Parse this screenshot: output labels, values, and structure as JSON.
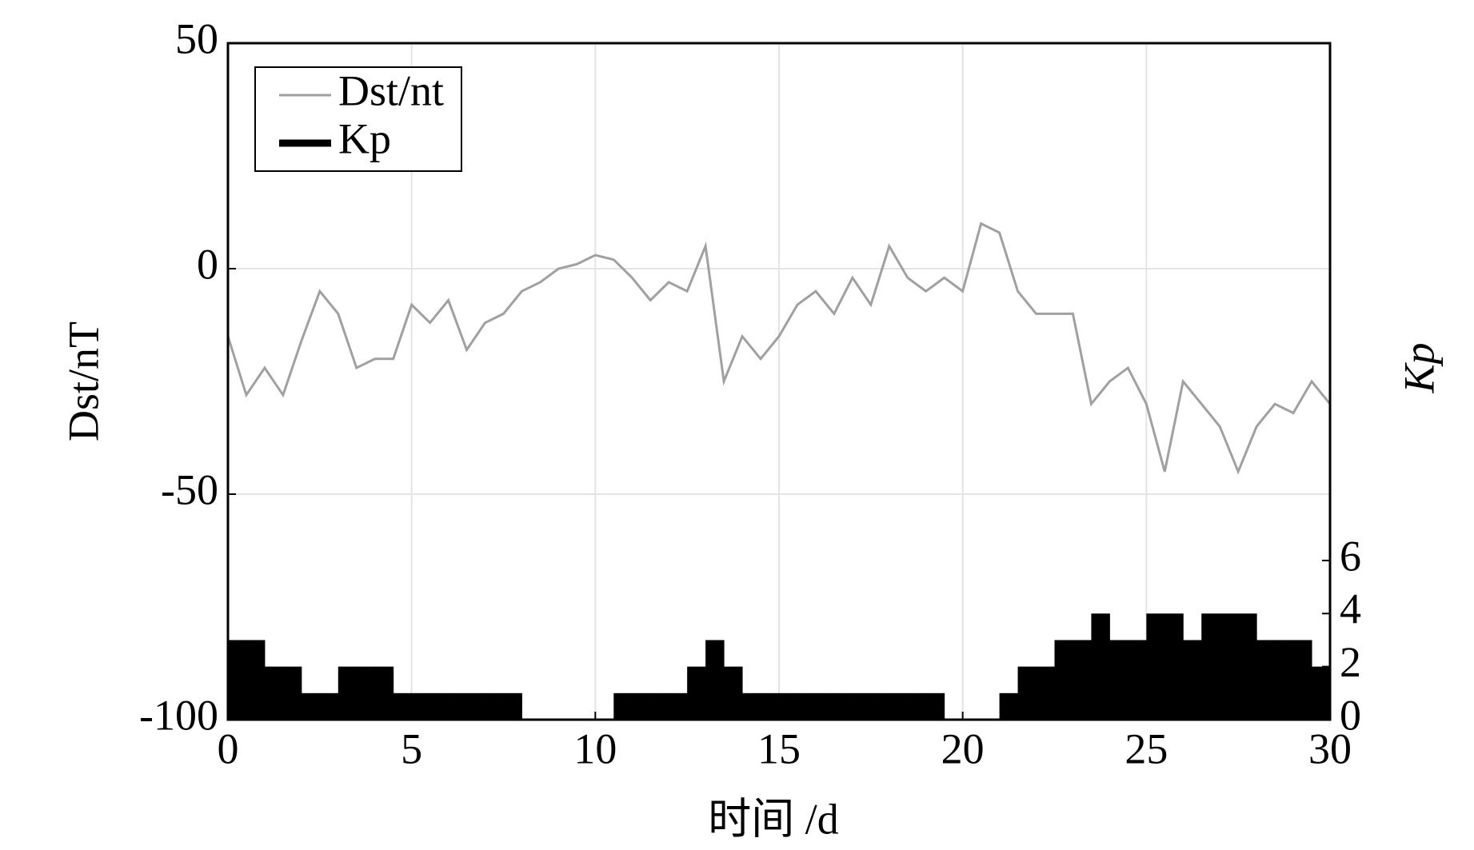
{
  "chart_data": {
    "type": "line",
    "xlabel": "时间 /d",
    "ylabel": "Dst/nT",
    "y2label": "Kp",
    "xlim": [
      0,
      30
    ],
    "xticks": [
      0,
      5,
      10,
      15,
      20,
      25,
      30
    ],
    "ylim": [
      -100,
      50
    ],
    "yticks": [
      -100,
      -50,
      0,
      50
    ],
    "y2lim": [
      0,
      25.5
    ],
    "y2ticks": [
      0,
      2,
      4,
      6
    ],
    "grid": true,
    "legend": "upper left",
    "series": [
      {
        "name": "Dst/nt",
        "color": "#a0a0a0",
        "kind": "line",
        "x": [
          0,
          0.5,
          1,
          1.5,
          2,
          2.5,
          3,
          3.5,
          4,
          4.5,
          5,
          5.5,
          6,
          6.5,
          7,
          7.5,
          8,
          8.5,
          9,
          9.5,
          10,
          10.5,
          11,
          11.5,
          12,
          12.5,
          13,
          13.5,
          14,
          14.5,
          15,
          15.5,
          16,
          16.5,
          17,
          17.5,
          18,
          18.5,
          19,
          19.5,
          20,
          20.5,
          21,
          21.5,
          22,
          22.5,
          23,
          23.5,
          24,
          24.5,
          25,
          25.5,
          26,
          26.5,
          27,
          27.5,
          28,
          28.5,
          29,
          29.5,
          30
        ],
        "values": [
          -15,
          -28,
          -22,
          -28,
          -16,
          -5,
          -10,
          -22,
          -20,
          -20,
          -8,
          -12,
          -7,
          -18,
          -12,
          -10,
          -5,
          -3,
          0,
          1,
          3,
          2,
          -2,
          -7,
          -3,
          -5,
          5,
          -25,
          -15,
          -20,
          -15,
          -8,
          -5,
          -10,
          -2,
          -8,
          5,
          -2,
          -5,
          -2,
          -5,
          10,
          8,
          -5,
          -10,
          -10,
          -10,
          -30,
          -25,
          -22,
          -30,
          -45,
          -25,
          -30,
          -35,
          -45,
          -35,
          -30,
          -32,
          -25,
          -30
        ]
      },
      {
        "name": "Kp",
        "color": "#000000",
        "kind": "bar",
        "axis": "y2",
        "bins": [
          0,
          0.5,
          1,
          1.5,
          2,
          2.5,
          3,
          3.5,
          4,
          4.5,
          5,
          5.5,
          6,
          6.5,
          7,
          7.5,
          8,
          8.5,
          9,
          9.5,
          10,
          10.5,
          11,
          11.5,
          12,
          12.5,
          13,
          13.5,
          14,
          14.5,
          15,
          15.5,
          16,
          16.5,
          17,
          17.5,
          18,
          18.5,
          19,
          19.5,
          20,
          20.5,
          21,
          21.5,
          22,
          22.5,
          23,
          23.5,
          24,
          24.5,
          25,
          25.5,
          26,
          26.5,
          27,
          27.5,
          28,
          28.5,
          29,
          29.5,
          30
        ],
        "values": [
          3,
          3,
          2,
          2,
          1,
          1,
          2,
          2,
          2,
          1,
          1,
          1,
          1,
          1,
          1,
          1,
          0,
          0,
          0,
          0,
          0,
          1,
          1,
          1,
          1,
          2,
          3,
          2,
          1,
          1,
          1,
          1,
          1,
          1,
          1,
          1,
          1,
          1,
          1,
          0,
          0,
          0,
          1,
          2,
          2,
          3,
          3,
          4,
          3,
          3,
          4,
          4,
          3,
          4,
          4,
          4,
          3,
          3,
          3,
          2
        ]
      }
    ]
  }
}
